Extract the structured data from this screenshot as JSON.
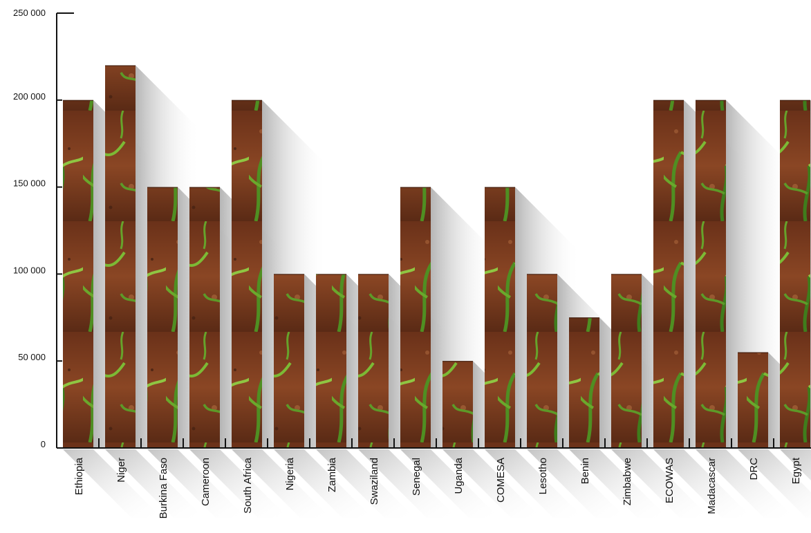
{
  "chart_data": {
    "type": "bar",
    "categories": [
      "Ethiopia",
      "Niger",
      "Burkina Faso",
      "Cameroon",
      "South Africa",
      "Nigeria",
      "Zambia",
      "Swaziland",
      "Senegal",
      "Uganda",
      "COMESA",
      "Lesotho",
      "Benin",
      "Zimbabwe",
      "ECOWAS",
      "Madacascar",
      "DRC",
      "Egypt"
    ],
    "values": [
      200000,
      220000,
      150000,
      150000,
      200000,
      100000,
      100000,
      100000,
      150000,
      50000,
      150000,
      100000,
      75000,
      100000,
      200000,
      200000,
      55000,
      200000
    ],
    "ylim": [
      0,
      250000
    ],
    "yticks": [
      0,
      50000,
      100000,
      150000,
      200000,
      250000
    ],
    "ytick_labels": [
      "0",
      "50 000",
      "100 000",
      "150 000",
      "200 000",
      "250 000"
    ],
    "title": "",
    "xlabel": "",
    "ylabel": "",
    "grid": false,
    "colors": {
      "soil_dark": "#4a2414",
      "soil_mid": "#7a3d20",
      "soil_light": "#a5582e",
      "leaf_dark": "#3d7a1a",
      "leaf_light": "#8cc43c",
      "shadow": "#b9b9b9",
      "axis": "#111111"
    }
  }
}
